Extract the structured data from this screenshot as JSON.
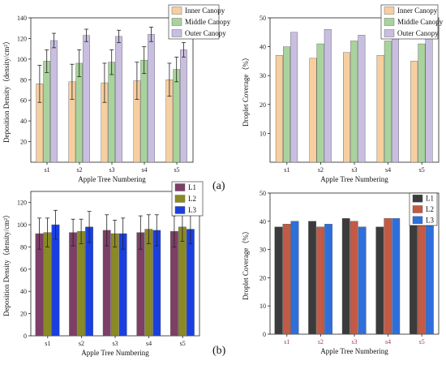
{
  "panel_labels": [
    "(a)",
    "(b)"
  ],
  "chart_data": [
    {
      "type": "bar",
      "xlabel": "Apple Tree Numbering",
      "ylabel": "Deposition Density（density/cm²）",
      "ylim": [
        0,
        140
      ],
      "yticks": [
        20,
        40,
        60,
        80,
        100,
        120,
        140
      ],
      "categories": [
        "s1",
        "s2",
        "s3",
        "s4",
        "s5"
      ],
      "legend": "top-right",
      "grid": false,
      "series": [
        {
          "name": "Inner Canopy",
          "color": "#f7cf9e",
          "values": [
            76,
            78,
            77,
            79,
            80
          ],
          "errors": [
            18,
            17,
            19,
            18,
            16
          ]
        },
        {
          "name": "Middle Canopy",
          "color": "#a9d39d",
          "values": [
            98,
            96,
            97,
            99,
            90
          ],
          "errors": [
            11,
            13,
            12,
            13,
            12
          ]
        },
        {
          "name": "Outer Canopy",
          "color": "#c8bfe0",
          "values": [
            118,
            123,
            122,
            124,
            109
          ],
          "errors": [
            7,
            6,
            6,
            7,
            7
          ]
        }
      ]
    },
    {
      "type": "bar",
      "xlabel": "Apple Tree Numbering",
      "ylabel": "Droplet Coverage（%）",
      "ylim": [
        0,
        50
      ],
      "yticks": [
        10,
        20,
        30,
        40,
        50
      ],
      "categories": [
        "s1",
        "s2",
        "s3",
        "s4",
        "s5"
      ],
      "legend": "top-right",
      "grid": false,
      "series": [
        {
          "name": "Inner Canopy",
          "color": "#f7cf9e",
          "values": [
            37,
            36,
            38,
            37,
            35
          ]
        },
        {
          "name": "Middle Canopy",
          "color": "#a9d39d",
          "values": [
            40,
            41,
            42,
            42,
            41
          ]
        },
        {
          "name": "Outer Canopy",
          "color": "#c8bfe0",
          "values": [
            45,
            46,
            44,
            47,
            45
          ]
        }
      ]
    },
    {
      "type": "bar",
      "xlabel": "Apple Tree Numbering",
      "ylabel": "Deposition Density（density/cm²）",
      "ylim": [
        0,
        130
      ],
      "yticks": [
        0,
        20,
        40,
        60,
        80,
        100,
        120
      ],
      "categories": [
        "s1",
        "s2",
        "s3",
        "s4",
        "s5"
      ],
      "legend": "top-right",
      "grid": false,
      "series": [
        {
          "name": "L1",
          "color": "#7d3f66",
          "values": [
            92,
            93,
            95,
            93,
            94
          ],
          "errors": [
            14,
            12,
            14,
            15,
            14
          ]
        },
        {
          "name": "L2",
          "color": "#8a8a24",
          "values": [
            93,
            94,
            92,
            96,
            98
          ],
          "errors": [
            13,
            11,
            12,
            13,
            13
          ]
        },
        {
          "name": "L3",
          "color": "#1a3fe0",
          "values": [
            100,
            98,
            92,
            95,
            96
          ],
          "errors": [
            13,
            14,
            14,
            14,
            13
          ]
        }
      ]
    },
    {
      "type": "bar",
      "xlabel": "Apple Tree Numbering",
      "ylabel": "Droplet Coverage（%）",
      "ylim": [
        0,
        50
      ],
      "yticks": [
        0,
        10,
        20,
        30,
        40,
        50
      ],
      "categories": [
        "s1",
        "s2",
        "s3",
        "s4",
        "s5"
      ],
      "legend": "top-right",
      "grid": false,
      "series": [
        {
          "name": "L1",
          "color": "#3b3b3b",
          "values": [
            38,
            40,
            41,
            38,
            39
          ]
        },
        {
          "name": "L2",
          "color": "#c25a45",
          "values": [
            39,
            38,
            40,
            41,
            39
          ]
        },
        {
          "name": "L3",
          "color": "#2f6fdc",
          "values": [
            40,
            39,
            38,
            41,
            42
          ]
        }
      ]
    }
  ]
}
